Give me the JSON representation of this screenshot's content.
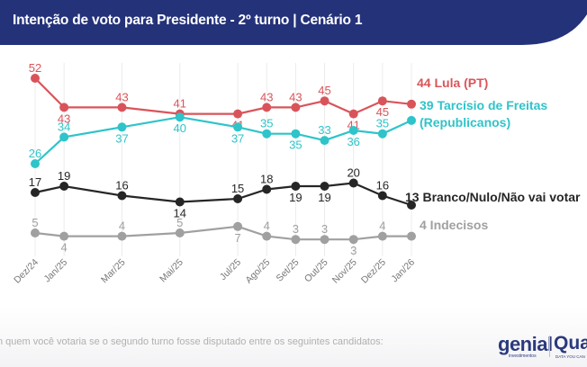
{
  "header": {
    "title": "Intenção de voto para Presidente - 2º turno | Cenário 1"
  },
  "footer": {
    "question": "n quem você votaria se o segundo turno fosse disputado entre os seguintes candidatos:",
    "logo_genial": "genial",
    "logo_genial_sub": "investimentos",
    "logo_quaest": "Quaest",
    "logo_quaest_sub": "DATA YOU CAN"
  },
  "colors": {
    "header_bg": "#24327a",
    "lula": "#d9545a",
    "tarcisio": "#2ec4c9",
    "branco": "#262626",
    "indecisos": "#a0a0a0",
    "grid": "#ececec"
  },
  "chart_data": {
    "type": "line",
    "title": "Intenção de voto para Presidente - 2º turno | Cenário 1",
    "xlabel": "",
    "ylabel": "",
    "grid": "vertical",
    "legend": "right-end-labels",
    "categories": [
      "Dez/24",
      "Jan/25",
      "Mar/25",
      "Mai/25",
      "Jul/25",
      "Ago/25",
      "Set/25",
      "Out/25",
      "Nov/25",
      "Dez/25",
      "Jan/26"
    ],
    "series": [
      {
        "name": "Lula (PT)",
        "end_label": "44 Lula (PT)",
        "color": "#d9545a",
        "values": [
          52,
          43,
          43,
          41,
          41,
          43,
          43,
          45,
          41,
          45,
          44
        ],
        "label_pos": [
          "above",
          "below",
          "above",
          "above",
          "below",
          "above",
          "above",
          "above",
          "below",
          "below",
          null
        ]
      },
      {
        "name": "Tarcísio de Freitas (Republicanos)",
        "end_label": "39 Tarcísio de Freitas",
        "end_label2": "(Republicanos)",
        "color": "#2ec4c9",
        "values": [
          26,
          34,
          37,
          40,
          37,
          35,
          35,
          33,
          36,
          35,
          39
        ],
        "label_pos": [
          "above",
          "above",
          "below",
          "below",
          "below",
          "above",
          "below",
          "above",
          "below",
          "above",
          null
        ]
      },
      {
        "name": "Branco/Nulo/Não vai votar",
        "end_label": "13 Branco/Nulo/Não vai votar",
        "color": "#262626",
        "values": [
          17,
          19,
          16,
          14,
          15,
          18,
          19,
          19,
          20,
          16,
          13
        ],
        "label_pos": [
          "above",
          "above",
          "above",
          "below",
          "above",
          "above",
          "below",
          "below",
          "above",
          "above",
          null
        ]
      },
      {
        "name": "Indecisos",
        "end_label": "4 Indecisos",
        "color": "#a0a0a0",
        "values": [
          5,
          4,
          4,
          5,
          7,
          4,
          3,
          3,
          3,
          4,
          4
        ],
        "label_pos": [
          "above",
          "below",
          "above",
          "above",
          "below",
          "above",
          "above",
          "above",
          "below",
          "above",
          null
        ]
      }
    ]
  }
}
